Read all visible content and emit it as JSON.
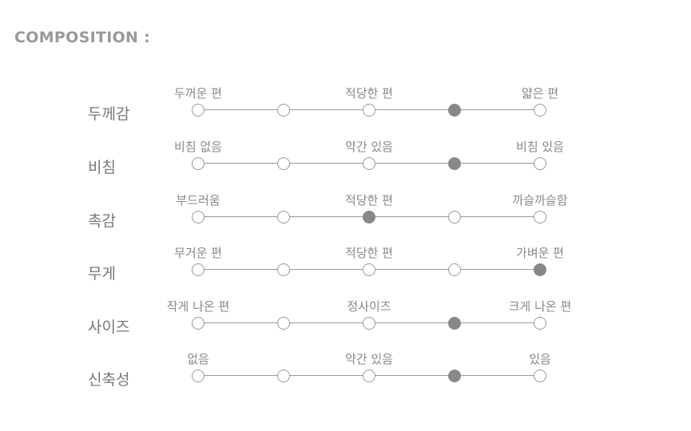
{
  "title": "COMPOSITION :",
  "rows": [
    {
      "label": "두께감",
      "options": [
        "두꺼운 편",
        "적당한 편",
        "얇은 편"
      ],
      "selected_step": 4,
      "steps": 5
    },
    {
      "label": "비침",
      "options": [
        "비침 없음",
        "약간 있음",
        "비침 있음"
      ],
      "selected_step": 4,
      "steps": 5
    },
    {
      "label": "촉감",
      "options": [
        "부드러움",
        "적당한 편",
        "까슬까슬함"
      ],
      "selected_step": 3,
      "steps": 5
    },
    {
      "label": "무게",
      "options": [
        "무거운 편",
        "적당한 편",
        "가벼운 편"
      ],
      "selected_step": 5,
      "steps": 5
    },
    {
      "label": "사이즈",
      "options": [
        "작게 나온 편",
        "정사이즈",
        "크게 나온 편"
      ],
      "selected_step": 4,
      "steps": 5
    },
    {
      "label": "신축성",
      "options": [
        "없음",
        "약간 있음",
        "있음"
      ],
      "selected_step": 4,
      "steps": 5
    }
  ],
  "colors": {
    "selected": "#888888",
    "line": "#999999"
  }
}
